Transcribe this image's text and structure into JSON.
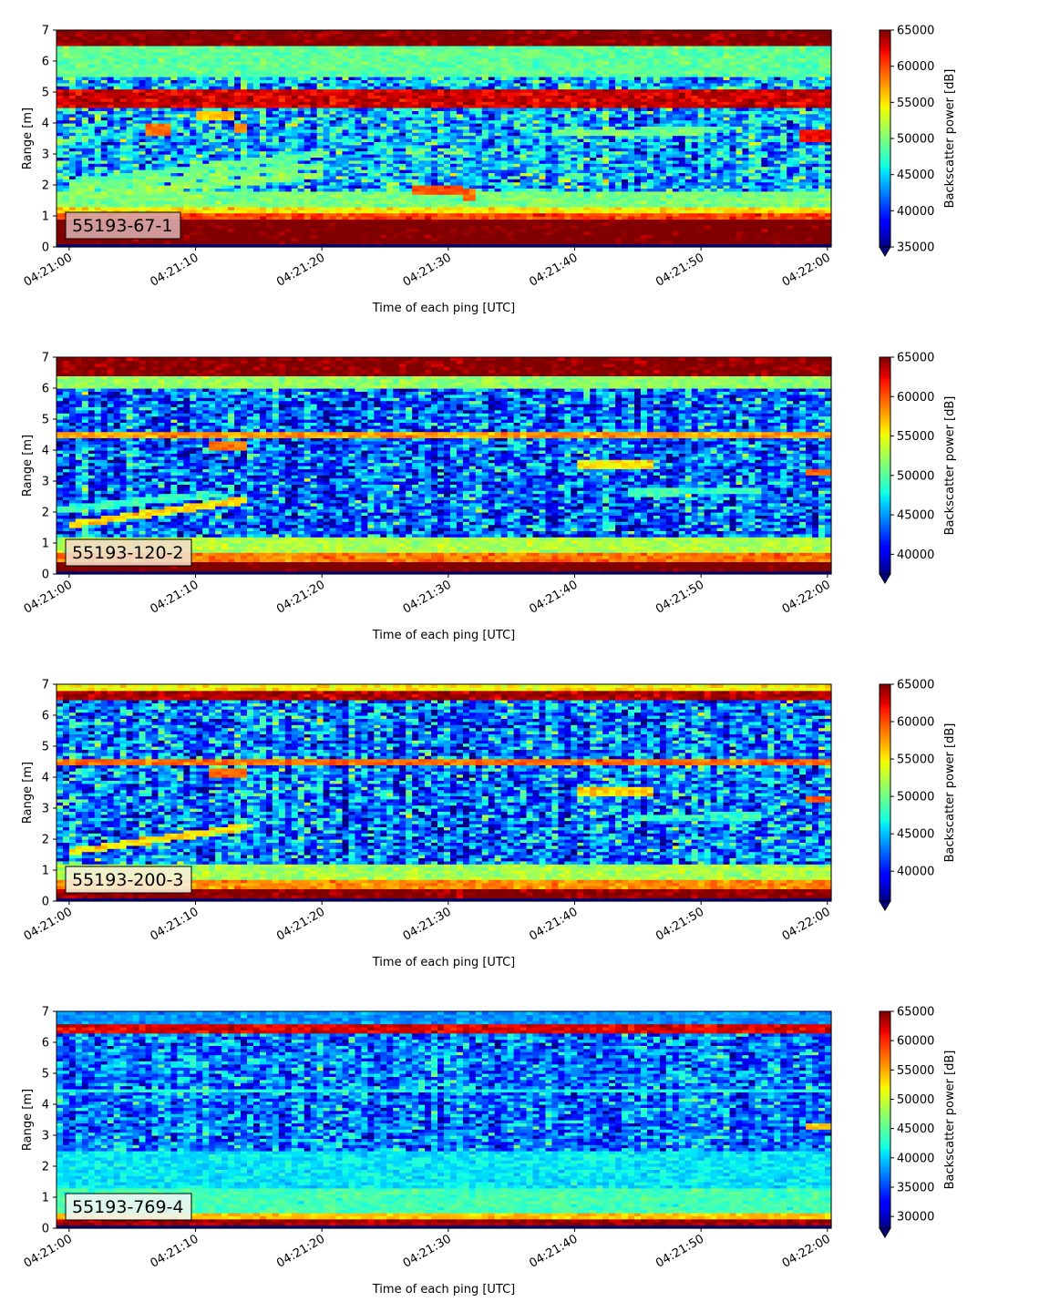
{
  "chart_data": [
    {
      "type": "heatmap",
      "panel_label": "55193-67-1",
      "xlabel": "Time of each ping [UTC]",
      "ylabel": "Range [m]",
      "colorbar_label": "Backscatter power [dB]",
      "x_tick_labels": [
        "04:21:00",
        "04:21:10",
        "04:21:20",
        "04:21:30",
        "04:21:40",
        "04:21:50",
        "04:22:00"
      ],
      "y_ticks": [
        0,
        1,
        2,
        3,
        4,
        5,
        6,
        7
      ],
      "xlim_seconds": [
        -1,
        60.3
      ],
      "ylim": [
        0,
        7
      ],
      "color_range": [
        35000,
        65000
      ],
      "colorbar_ticks": [
        35000,
        40000,
        45000,
        50000,
        55000,
        60000,
        65000
      ],
      "colorbar_extend": "min",
      "colormap": "jet",
      "label_box_color": "#d8a8a8",
      "structure": {
        "base": 44000,
        "bands": [
          [
            0.15,
            0.95,
            66000
          ],
          [
            0.95,
            1.15,
            60000
          ],
          [
            1.15,
            1.3,
            55000
          ],
          [
            1.3,
            1.8,
            50000
          ],
          [
            4.55,
            5.1,
            63000
          ],
          [
            6.5,
            7.0,
            65000
          ],
          [
            5.5,
            6.5,
            49000
          ]
        ],
        "tracks": [
          [
            0,
            1.65,
            20,
            2.35,
            51000
          ],
          [
            0,
            1.9,
            20,
            2.65,
            50000
          ],
          [
            0,
            2.1,
            20,
            3.0,
            49000
          ],
          [
            38,
            3.7,
            50,
            3.75,
            50000
          ]
        ],
        "patches": [
          [
            6,
            8,
            3.6,
            4.0,
            59000
          ],
          [
            10,
            13,
            4.1,
            4.4,
            56000
          ],
          [
            13,
            14,
            3.7,
            4.0,
            58000
          ],
          [
            27,
            31,
            1.7,
            2.0,
            60000
          ],
          [
            31,
            32,
            1.5,
            1.9,
            59000
          ],
          [
            58,
            60.3,
            3.4,
            3.8,
            62000
          ]
        ],
        "noise": 5500
      }
    },
    {
      "type": "heatmap",
      "panel_label": "55193-120-2",
      "xlabel": "Time of each ping [UTC]",
      "ylabel": "Range [m]",
      "colorbar_label": "Backscatter power [dB]",
      "x_tick_labels": [
        "04:21:00",
        "04:21:10",
        "04:21:20",
        "04:21:30",
        "04:21:40",
        "04:21:50",
        "04:22:00"
      ],
      "y_ticks": [
        0,
        1,
        2,
        3,
        4,
        5,
        6,
        7
      ],
      "xlim_seconds": [
        -1,
        60.3
      ],
      "ylim": [
        0,
        7
      ],
      "color_range": [
        37500,
        65000
      ],
      "colorbar_ticks": [
        40000,
        45000,
        50000,
        55000,
        60000,
        65000
      ],
      "colorbar_extend": "min",
      "colormap": "jet",
      "label_box_color": "#f2dcc8",
      "structure": {
        "base": 43500,
        "bands": [
          [
            0.1,
            0.45,
            66000
          ],
          [
            0.45,
            0.7,
            59000
          ],
          [
            0.7,
            1.2,
            53000
          ],
          [
            4.4,
            4.6,
            58000
          ],
          [
            6.45,
            7.0,
            65000
          ],
          [
            6.0,
            6.4,
            52000
          ]
        ],
        "tracks": [
          [
            0,
            1.6,
            14,
            2.4,
            56000
          ],
          [
            -1,
            2.1,
            12,
            2.6,
            49000
          ],
          [
            44,
            2.65,
            55,
            2.7,
            49000
          ],
          [
            40,
            3.55,
            46,
            3.55,
            56000
          ]
        ],
        "patches": [
          [
            11,
            14,
            4.05,
            4.3,
            59000
          ],
          [
            58.5,
            60.3,
            3.2,
            3.4,
            60000
          ]
        ],
        "noise": 5000
      }
    },
    {
      "type": "heatmap",
      "panel_label": "55193-200-3",
      "xlabel": "Time of each ping [UTC]",
      "ylabel": "Range [m]",
      "colorbar_label": "Backscatter power [dB]",
      "x_tick_labels": [
        "04:21:00",
        "04:21:10",
        "04:21:20",
        "04:21:30",
        "04:21:40",
        "04:21:50",
        "04:22:00"
      ],
      "y_ticks": [
        0,
        1,
        2,
        3,
        4,
        5,
        6,
        7
      ],
      "xlim_seconds": [
        -1,
        60.3
      ],
      "ylim": [
        0,
        7
      ],
      "color_range": [
        36000,
        65000
      ],
      "colorbar_ticks": [
        40000,
        45000,
        50000,
        55000,
        60000,
        65000
      ],
      "colorbar_extend": "min",
      "colormap": "jet",
      "label_box_color": "#f7f0d8",
      "structure": {
        "base": 43000,
        "bands": [
          [
            0.1,
            0.45,
            65000
          ],
          [
            0.45,
            0.75,
            58000
          ],
          [
            0.75,
            1.2,
            52000
          ],
          [
            4.4,
            4.6,
            59000
          ],
          [
            6.5,
            7.0,
            64000
          ],
          [
            6.85,
            7.0,
            55000
          ]
        ],
        "tracks": [
          [
            0,
            1.6,
            14,
            2.4,
            55000
          ],
          [
            40,
            3.55,
            46,
            3.55,
            56000
          ],
          [
            44,
            2.7,
            55,
            2.75,
            48000
          ]
        ],
        "patches": [
          [
            11,
            14,
            4.05,
            4.3,
            59000
          ],
          [
            58.5,
            60.3,
            3.2,
            3.4,
            60000
          ]
        ],
        "noise": 5500
      }
    },
    {
      "type": "heatmap",
      "panel_label": "55193-769-4",
      "xlabel": "Time of each ping [UTC]",
      "ylabel": "Range [m]",
      "colorbar_label": "Backscatter power [dB]",
      "x_tick_labels": [
        "04:21:00",
        "04:21:10",
        "04:21:20",
        "04:21:30",
        "04:21:40",
        "04:21:50",
        "04:22:00"
      ],
      "y_ticks": [
        0,
        1,
        2,
        3,
        4,
        5,
        6,
        7
      ],
      "xlim_seconds": [
        -1,
        60.3
      ],
      "ylim": [
        0,
        7
      ],
      "color_range": [
        28000,
        65000
      ],
      "colorbar_ticks": [
        30000,
        35000,
        40000,
        45000,
        50000,
        55000,
        60000,
        65000
      ],
      "colorbar_extend": "min",
      "colormap": "jet",
      "label_box_color": "#eef6f2",
      "structure": {
        "base": 37000,
        "bands": [
          [
            0.15,
            0.3,
            64000
          ],
          [
            0.3,
            0.5,
            54000
          ],
          [
            0.5,
            1.3,
            44000
          ],
          [
            1.3,
            2.5,
            41000
          ],
          [
            4.4,
            4.5,
            42000
          ],
          [
            6.3,
            6.6,
            62000
          ],
          [
            6.6,
            7.0,
            38000
          ]
        ],
        "tracks": [],
        "patches": [
          [
            58.5,
            60.3,
            3.2,
            3.4,
            54000
          ]
        ],
        "noise": 5500
      }
    }
  ]
}
